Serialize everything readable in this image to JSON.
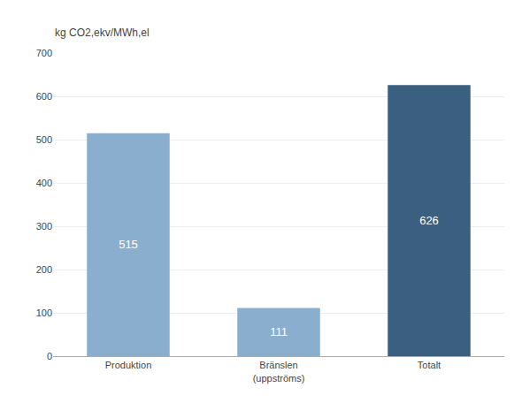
{
  "chart_data": {
    "type": "bar",
    "ylabel": "kg CO2,ekv/MWh,el",
    "categories": [
      "Produktion",
      "Bränslen\n(uppströms)",
      "Totalt"
    ],
    "values": [
      515,
      111,
      626
    ],
    "colors": [
      "#8aafce",
      "#8aafce",
      "#3b5f80"
    ],
    "ylim": [
      0,
      700
    ],
    "yticks": [
      0,
      100,
      200,
      300,
      400,
      500,
      600,
      700
    ],
    "grid": true,
    "data_labels": true
  }
}
